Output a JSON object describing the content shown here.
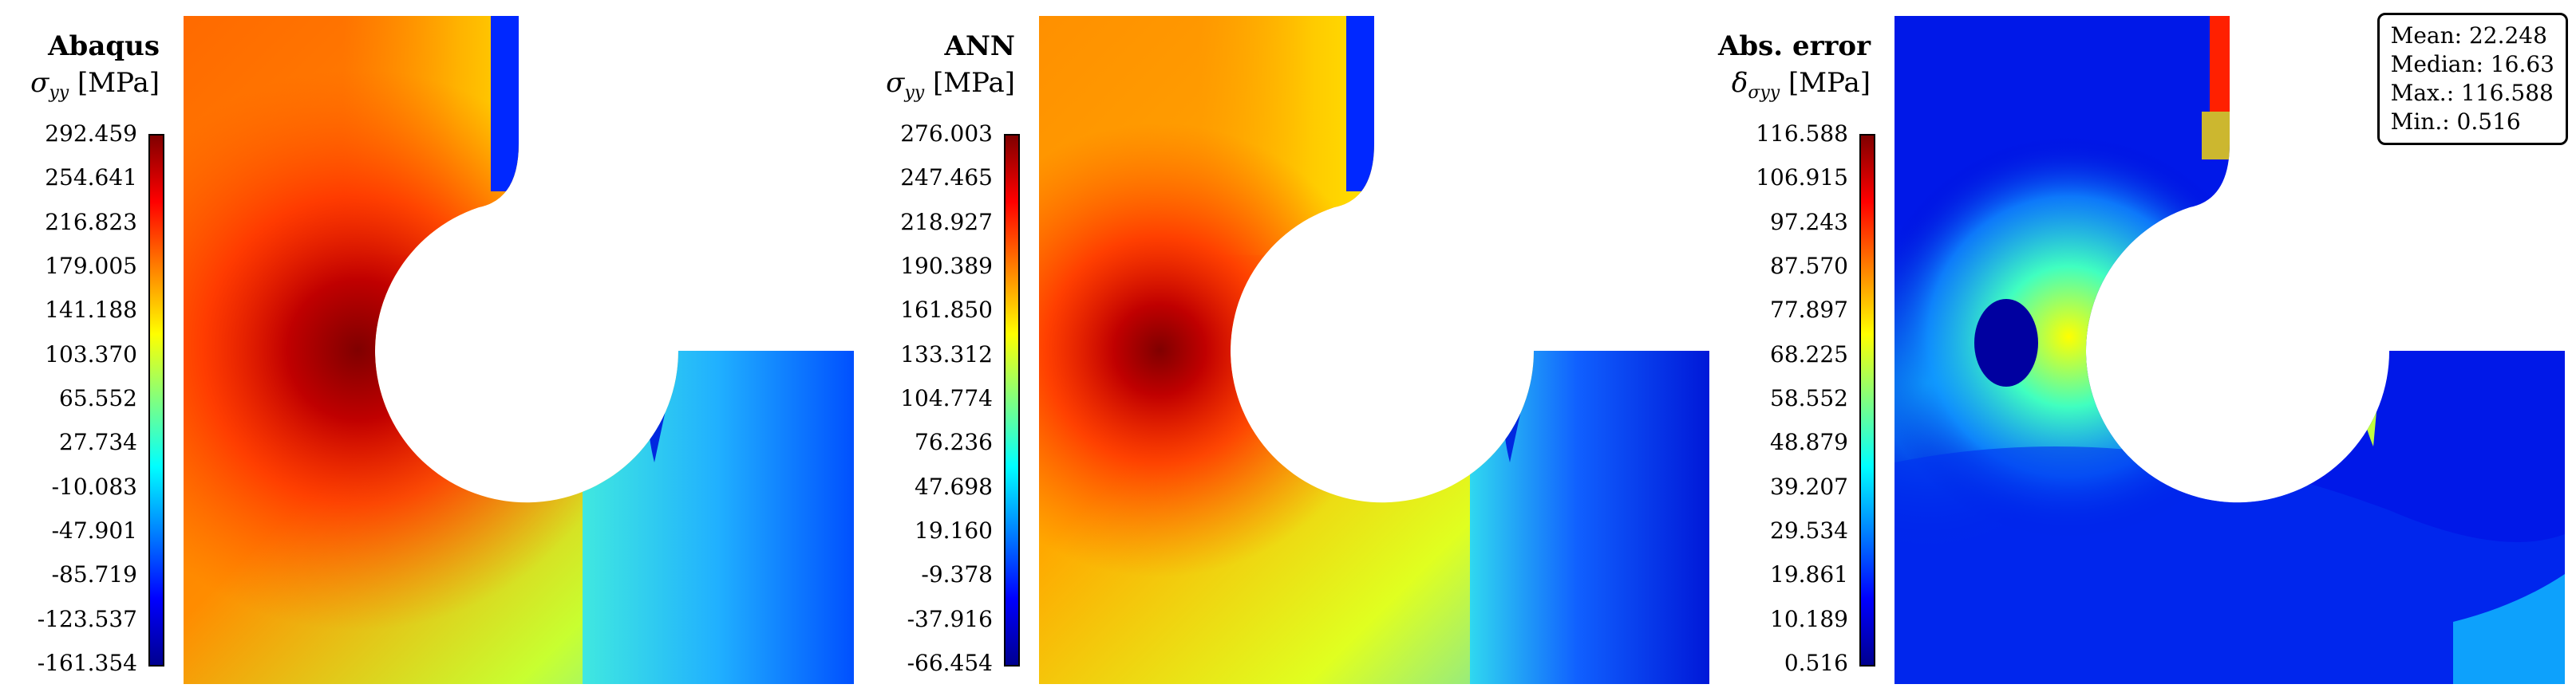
{
  "panels": [
    {
      "title": "Abaqus",
      "quantity_symbol": "σ",
      "quantity_subscript": "yy",
      "unit": "[MPa]",
      "colorbar_ticks": [
        "292.459",
        "254.641",
        "216.823",
        "179.005",
        "141.188",
        "103.370",
        "65.552",
        "27.734",
        "-10.083",
        "-47.901",
        "-85.719",
        "-123.537",
        "-161.354"
      ]
    },
    {
      "title": "ANN",
      "quantity_symbol": "σ",
      "quantity_subscript": "yy",
      "unit": "[MPa]",
      "colorbar_ticks": [
        "276.003",
        "247.465",
        "218.927",
        "190.389",
        "161.850",
        "133.312",
        "104.774",
        "76.236",
        "47.698",
        "19.160",
        "-9.378",
        "-37.916",
        "-66.454"
      ]
    },
    {
      "title": "Abs. error",
      "quantity_symbol": "δ",
      "quantity_subscript": "σyy",
      "unit": "[MPa]",
      "colorbar_ticks": [
        "116.588",
        "106.915",
        "97.243",
        "87.570",
        "77.897",
        "68.225",
        "58.552",
        "48.879",
        "39.207",
        "29.534",
        "19.861",
        "10.189",
        "0.516"
      ]
    }
  ],
  "error_stats": {
    "mean": "Mean: 22.248",
    "median": "Median: 16.63",
    "max": "Max.: 116.588",
    "min": "Min.: 0.516"
  },
  "colormap": "jet",
  "colors": {
    "dark_red": "#800000",
    "red": "#ff0000",
    "yellow": "#ffff00",
    "cyan": "#00ffff",
    "blue": "#0000ff",
    "dark_blue": "#00008f"
  }
}
